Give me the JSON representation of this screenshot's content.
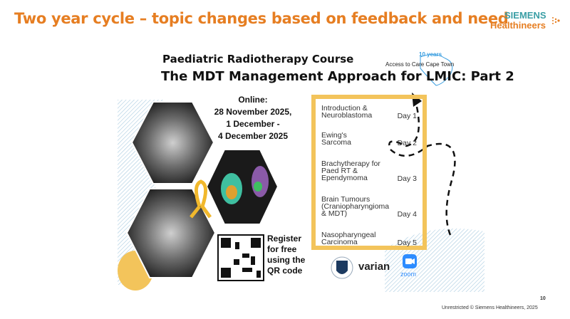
{
  "slide": {
    "title": "Two year cycle – topic changes based on feedback and need",
    "page_number": "10",
    "footer": "Unrestricted © Siemens Healthineers, 2025"
  },
  "brand": {
    "line1": "SIEMENS",
    "line2": "Healthineers",
    "colors": {
      "teal": "#3a9ea5",
      "orange": "#e67e22"
    }
  },
  "poster": {
    "title1": "Paediatric Radiotherapy Course",
    "title2": "The MDT Management Approach for LMIC: Part 2",
    "partner_logo": "Access to Care Cape Town",
    "partner_logo_badge": "10 years",
    "online": [
      "Online:",
      "28 November 2025,",
      "1 December -",
      "4 December 2025"
    ],
    "schedule": [
      {
        "topic": "Introduction & Neuroblastoma",
        "day": "Day 1"
      },
      {
        "topic": "Ewing's Sarcoma",
        "day": "Day 2"
      },
      {
        "topic": "Brachytherapy for Paed RT & Ependymoma",
        "day": "Day 3"
      },
      {
        "topic": "Brain Tumours (Craniopharyngioma & MDT)",
        "day": "Day 4"
      },
      {
        "topic": "Nasopharyngeal Carcinoma",
        "day": "Day 5"
      }
    ],
    "register": [
      "Register",
      "for free",
      "using the",
      "QR code"
    ],
    "logos": {
      "varian": "varian",
      "zoom": "zoom"
    },
    "accent": "#f3c45b"
  }
}
